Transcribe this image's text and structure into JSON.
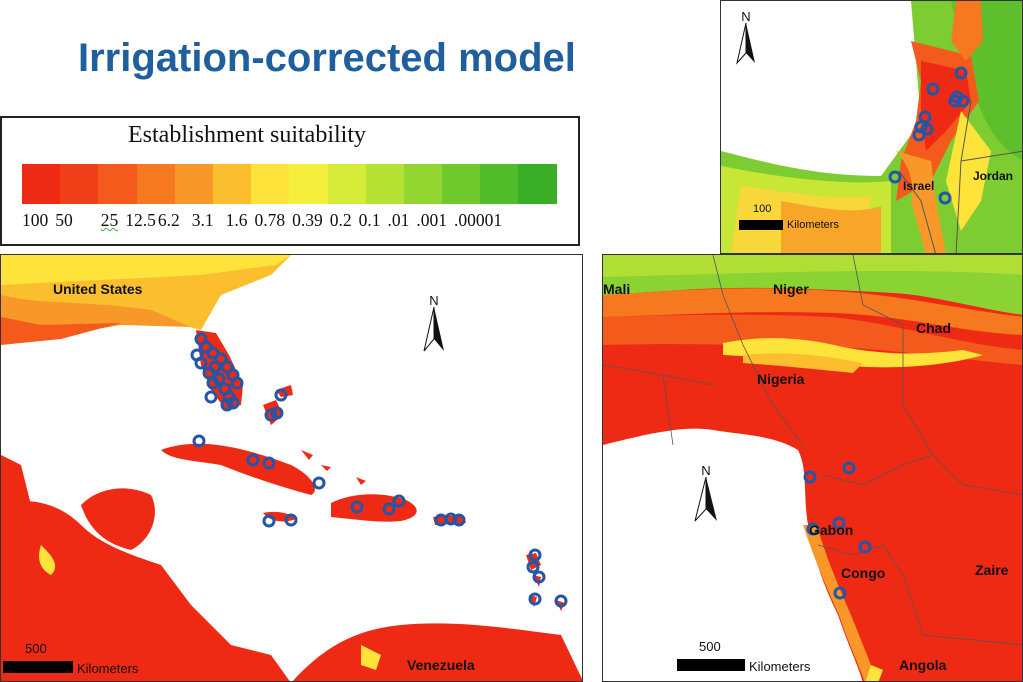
{
  "title": "Irrigation-corrected model",
  "legend": {
    "title": "Establishment suitability",
    "colors": [
      "#ee2a14",
      "#f0401a",
      "#f35a1c",
      "#f6781f",
      "#f89828",
      "#fbbe2e",
      "#fde33a",
      "#f3ef3c",
      "#d6ea38",
      "#b7e034",
      "#93d531",
      "#72c92d",
      "#52bd2a",
      "#3aae26"
    ],
    "labels": [
      "100",
      "50",
      "25",
      "12.5",
      "6.2",
      "3.1",
      "1.6",
      "0.78",
      "0.39",
      "0.2",
      "0.1",
      ".01",
      ".001",
      ".00001"
    ]
  },
  "north_symbol": "N",
  "maps": {
    "caribbean": {
      "labels": [
        "United States",
        "Venezuela"
      ],
      "scale_value": "500",
      "scale_unit": "Kilometers",
      "north_arrow_icon": "north-arrow-icon"
    },
    "israel": {
      "labels": [
        "Israel",
        "Jordan"
      ],
      "scale_value": "100",
      "scale_unit": "Kilometers",
      "north_arrow_icon": "north-arrow-icon"
    },
    "africa": {
      "labels": [
        "Mali",
        "Niger",
        "Chad",
        "Nigeria",
        "Gabon",
        "Congo",
        "Zaire",
        "Angola"
      ],
      "scale_value": "500",
      "scale_unit": "Kilometers",
      "north_arrow_icon": "north-arrow-icon"
    }
  },
  "marker_color": "#2455a6"
}
